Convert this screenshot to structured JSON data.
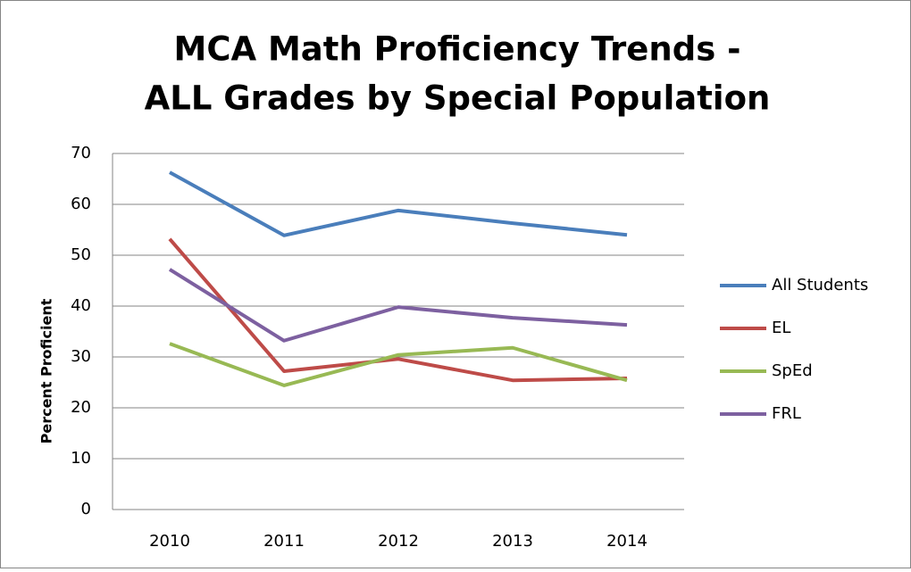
{
  "chart_data": {
    "type": "line",
    "title": [
      "MCA Math Proficiency Trends -",
      "ALL Grades by Special Population"
    ],
    "y_label": "Percent Proficient",
    "categories": [
      "2010",
      "2011",
      "2012",
      "2013",
      "2014"
    ],
    "series": [
      {
        "name": "All Students",
        "color": "#4a7ebb",
        "values": [
          66.3,
          53.9,
          58.8,
          56.3,
          54
        ]
      },
      {
        "name": "EL",
        "color": "#be4b48",
        "values": [
          53.2,
          27.2,
          29.6,
          25.4,
          25.8
        ]
      },
      {
        "name": "SpEd",
        "color": "#98b954",
        "values": [
          32.6,
          24.4,
          30.4,
          31.8,
          25.4
        ]
      },
      {
        "name": "FRL",
        "color": "#7d60a0",
        "values": [
          47.2,
          33.2,
          39.8,
          37.7,
          36.3
        ]
      }
    ],
    "ylim": [
      0,
      70
    ],
    "yticks": [
      0,
      10,
      20,
      30,
      40,
      50,
      60,
      70
    ],
    "grid": true,
    "legend": "right"
  }
}
